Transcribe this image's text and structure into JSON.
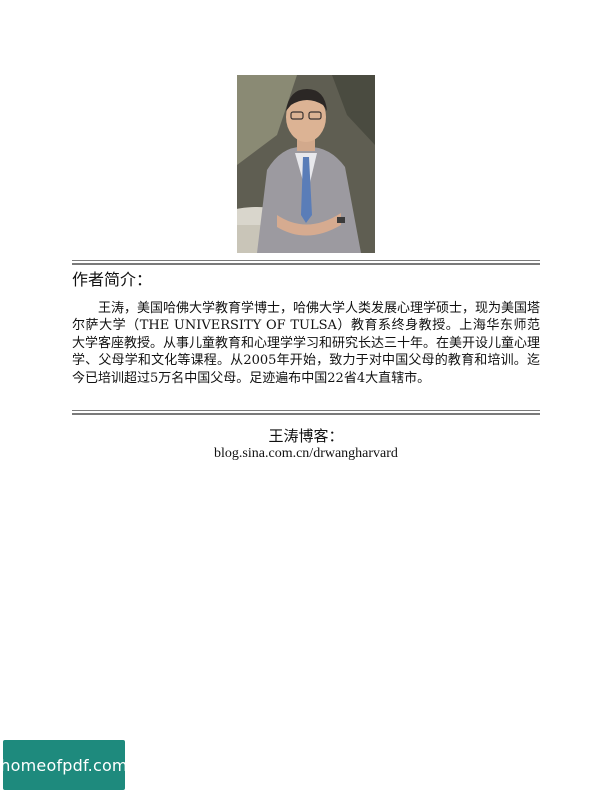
{
  "author_section": {
    "heading": "作者简介：",
    "bio": "王涛，美国哈佛大学教育学博士，哈佛大学人类发展心理学硕士，现为美国塔尔萨大学（THE UNIVERSITY OF TULSA）教育系终身教授。上海华东师范大学客座教授。从事儿童教育和心理学学习和研究长达三十年。在美开设儿童心理学、父母学和文化等课程。从2005年开始，致力于对中国父母的教育和培训。迄今已培训超过5万名中国父母。足迹遍布中国22省4大直辖市。"
  },
  "blog": {
    "title": "王涛博客：",
    "url": "blog.sina.com.cn/drwangharvard"
  },
  "watermark": {
    "text": "homeofpdf.com",
    "background_color": "#1e8a7d"
  }
}
